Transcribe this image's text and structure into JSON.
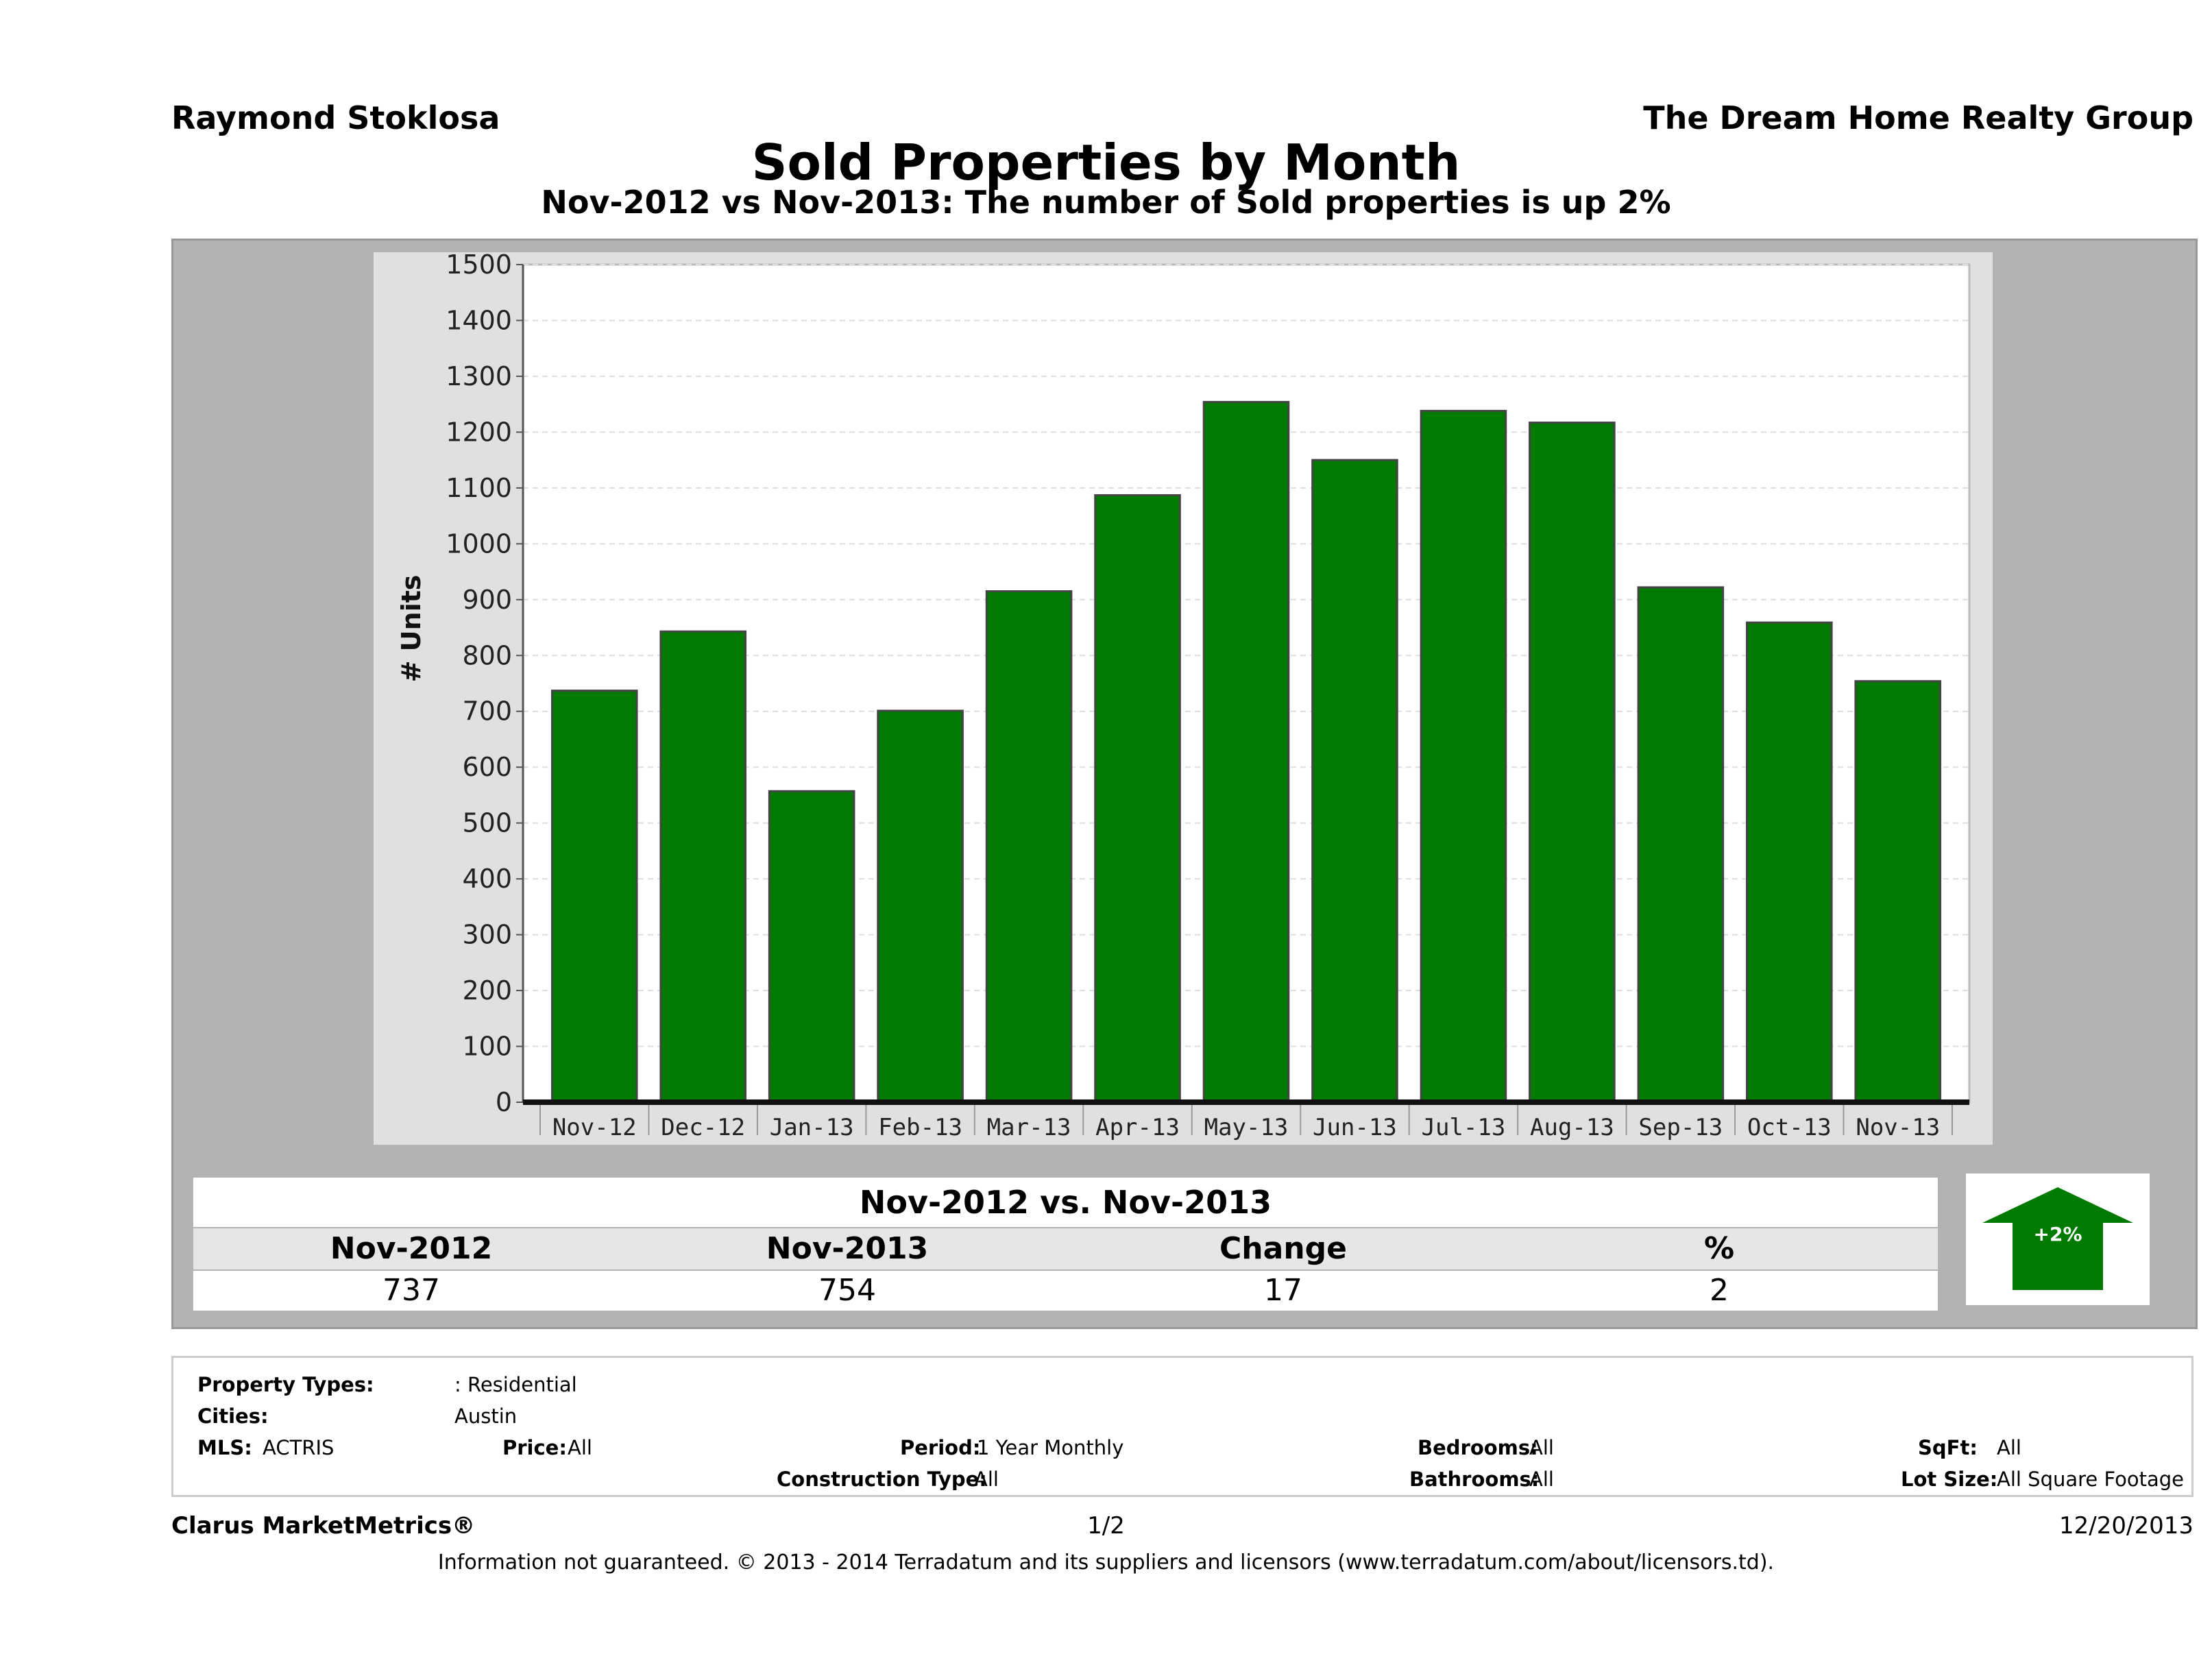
{
  "header": {
    "agent": "Raymond Stoklosa",
    "company": "The Dream Home Realty Group",
    "title": "Sold Properties by Month",
    "subtitle": "Nov-2012 vs Nov-2013: The number of Sold   properties is up 2%"
  },
  "chart_data": {
    "type": "bar",
    "categories": [
      "Nov-12",
      "Dec-12",
      "Jan-13",
      "Feb-13",
      "Mar-13",
      "Apr-13",
      "May-13",
      "Jun-13",
      "Jul-13",
      "Aug-13",
      "Sep-13",
      "Oct-13",
      "Nov-13"
    ],
    "values": [
      737,
      843,
      557,
      701,
      915,
      1087,
      1254,
      1150,
      1238,
      1217,
      922,
      859,
      754
    ],
    "ylabel": "# Units",
    "ylim": [
      0,
      1500
    ],
    "yticks": [
      0,
      100,
      200,
      300,
      400,
      500,
      600,
      700,
      800,
      900,
      1000,
      1100,
      1200,
      1300,
      1400,
      1500
    ],
    "grid": true,
    "bar_color": "#007a00"
  },
  "comparison": {
    "heading": "Nov-2012 vs. Nov-2013",
    "labels": [
      "Nov-2012",
      "Nov-2013",
      "Change",
      "%"
    ],
    "values": [
      "737",
      "754",
      "17",
      "2"
    ],
    "arrow_label": "+2%",
    "arrow_direction": "up",
    "arrow_color": "#007a00"
  },
  "filters": {
    "property_types_label": "Property Types:",
    "property_types_value": ": Residential",
    "cities_label": "Cities:",
    "cities_value": "Austin",
    "mls_label": "MLS:",
    "mls_value": "ACTRIS",
    "price_label": "Price:",
    "price_value": "All",
    "period_label": "Period:",
    "period_value": "1 Year Monthly",
    "bedrooms_label": "Bedrooms:",
    "bedrooms_value": "All",
    "sqft_label": "SqFt:",
    "sqft_value": "All",
    "construction_label": "Construction Type:",
    "construction_value": "All",
    "bathrooms_label": "Bathrooms:",
    "bathrooms_value": "All",
    "lotsize_label": "Lot Size:",
    "lotsize_value": "All Square Footage"
  },
  "footer": {
    "brand": "Clarus MarketMetrics®",
    "page": "1/2",
    "date": "12/20/2013",
    "disclaimer": "Information not guaranteed. © 2013 - 2014 Terradatum and its suppliers and licensors (www.terradatum.com/about/licensors.td)."
  }
}
